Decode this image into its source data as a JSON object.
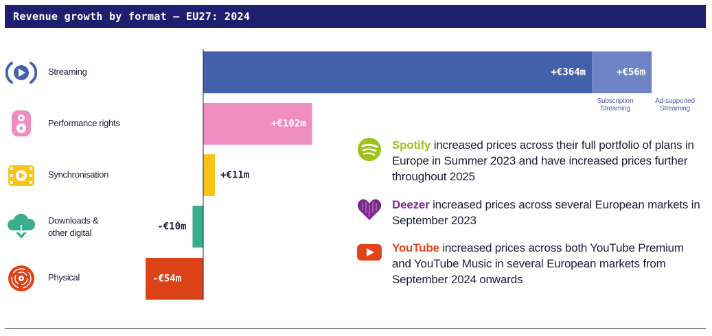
{
  "header": {
    "title": "Revenue growth by format – EU27: 2024"
  },
  "colors": {
    "header_bg": "#1e1f6e",
    "streaming_subscription": "#4360ab",
    "streaming_ad_supported": "#6f84c7",
    "performance_rights": "#ee8dbf",
    "synchronisation": "#fbc316",
    "downloads_other_digital": "#3aad8c",
    "physical": "#dc4318",
    "spotify": "#9dc31d",
    "deezer": "#7b2a8c",
    "youtube": "#e2441a"
  },
  "chart_data": {
    "type": "bar",
    "orientation": "horizontal",
    "title": "Revenue growth by format – EU27: 2024",
    "unit": "€m",
    "categories": [
      "Streaming",
      "Performance rights",
      "Synchronisation",
      "Downloads & other digital",
      "Physical"
    ],
    "category_icons": [
      "streaming-icon",
      "performance-rights-icon",
      "synchronisation-icon",
      "downloads-cloud-icon",
      "physical-vinyl-icon"
    ],
    "series": [
      {
        "name": "Subscription Streaming",
        "values": [
          364,
          0,
          0,
          0,
          0
        ]
      },
      {
        "name": "Ad-supported Streaming",
        "values": [
          56,
          0,
          0,
          0,
          0
        ]
      },
      {
        "name": "",
        "values": [
          0,
          102,
          11,
          -10,
          -54
        ]
      }
    ],
    "data_labels": {
      "streaming_subscription": "+€364m",
      "streaming_ad_supported": "+€56m",
      "performance_rights": "+€102m",
      "synchronisation": "+€11m",
      "downloads_other_digital": "-€10m",
      "physical": "-€54m"
    },
    "segment_labels": {
      "subscription": [
        "Subscription",
        "Streaming"
      ],
      "ad_supported": [
        "Ad-supported",
        "Streaming"
      ]
    }
  },
  "categories": {
    "streaming": "Streaming",
    "performance_rights": "Performance rights",
    "synchronisation": "Synchronisation",
    "downloads_line1": "Downloads &",
    "downloads_line2": "other digital",
    "physical": "Physical"
  },
  "notes": [
    {
      "brand": "Spotify",
      "text": " increased prices across their full portfolio of plans in Europe in Summer 2023 and have increased prices further throughout 2025",
      "icon": "spotify-icon"
    },
    {
      "brand": "Deezer",
      "text": " increased prices across several European markets in September 2023",
      "icon": "deezer-heart-icon"
    },
    {
      "brand": "YouTube",
      "text": " increased prices across both YouTube Premium and YouTube Music in several European markets from September 2024 onwards",
      "icon": "youtube-icon"
    }
  ]
}
